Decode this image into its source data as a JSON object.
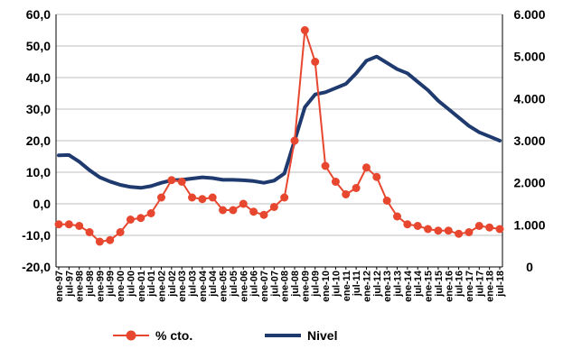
{
  "chart_data": {
    "type": "line",
    "x_tick_labels": [
      "ene-97",
      "jul-97",
      "ene-98",
      "jul-98",
      "ene-99",
      "jul-99",
      "ene-00",
      "jul-00",
      "ene-01",
      "jul-01",
      "ene-02",
      "jul-02",
      "ene-03",
      "jul-03",
      "ene-04",
      "jul-04",
      "ene-05",
      "jul-05",
      "ene-06",
      "jul-06",
      "ene-07",
      "jul-07",
      "ene-08",
      "jul-08",
      "ene-09",
      "jul-09",
      "ene-10",
      "jul-10",
      "ene-11",
      "jul-11",
      "ene-12",
      "jul-12",
      "ene-13",
      "jul-13",
      "ene-14",
      "jul-14",
      "ene-15",
      "jul-15",
      "ene-16",
      "jul-16",
      "ene-17",
      "jul-17",
      "ene-18",
      "jul-18"
    ],
    "y_left": {
      "ylim": [
        -20,
        60
      ],
      "ticks": [
        "-20,0",
        "-10,0",
        "0,0",
        "10,0",
        "20,0",
        "30,0",
        "40,0",
        "50,0",
        "60,0"
      ]
    },
    "y_right": {
      "ylim": [
        0,
        6000
      ],
      "ticks": [
        "0",
        "1.000",
        "2.000",
        "3.000",
        "4.000",
        "5.000",
        "6.000"
      ]
    },
    "grid": "horizontal",
    "legend_placement": "bottom",
    "series": [
      {
        "name": "% cto.",
        "axis": "left",
        "color": "#e8472f",
        "marker": "circle",
        "x": [
          "ene-97",
          "jul-97",
          "ene-98",
          "jul-98",
          "ene-99",
          "jul-99",
          "ene-00",
          "jul-00",
          "ene-01",
          "jul-01",
          "ene-02",
          "jul-02",
          "ene-03",
          "jul-03",
          "ene-04",
          "jul-04",
          "ene-05",
          "jul-05",
          "ene-06",
          "jul-06",
          "ene-07",
          "jul-07",
          "ene-08",
          "jul-08",
          "ene-09",
          "jul-09",
          "ene-10",
          "jul-10",
          "ene-11",
          "jul-11",
          "ene-12",
          "jul-12",
          "ene-13",
          "jul-13",
          "ene-14",
          "jul-14",
          "ene-15",
          "jul-15",
          "ene-16",
          "jul-16",
          "ene-17",
          "jul-17",
          "ene-18",
          "jul-18"
        ],
        "values": [
          -6.5,
          -6.5,
          -7.0,
          -9.0,
          -12.0,
          -11.5,
          -9.0,
          -5.0,
          -4.5,
          -3.0,
          2.0,
          7.5,
          7.0,
          2.0,
          1.5,
          2.0,
          -2.0,
          -2.0,
          0.0,
          -2.5,
          -3.5,
          -1.0,
          2.0,
          20.0,
          55.0,
          45.0,
          12.0,
          7.0,
          3.0,
          5.0,
          11.5,
          8.5,
          1.0,
          -4.0,
          -6.5,
          -7.0,
          -8.0,
          -8.5,
          -8.5,
          -9.5,
          -9.0,
          -7.0,
          -7.5,
          -8.0
        ]
      },
      {
        "name": "Nivel",
        "axis": "right",
        "color": "#1f3a6e",
        "marker": "none",
        "x": [
          "ene-97",
          "jul-97",
          "ene-98",
          "jul-98",
          "ene-99",
          "jul-99",
          "ene-00",
          "jul-00",
          "ene-01",
          "jul-01",
          "ene-02",
          "jul-02",
          "ene-03",
          "jul-03",
          "ene-04",
          "jul-04",
          "ene-05",
          "jul-05",
          "ene-06",
          "jul-06",
          "ene-07",
          "jul-07",
          "ene-08",
          "jul-08",
          "ene-09",
          "jul-09",
          "ene-10",
          "jul-10",
          "ene-11",
          "jul-11",
          "ene-12",
          "jul-12",
          "ene-13",
          "jul-13",
          "ene-14",
          "jul-14",
          "ene-15",
          "jul-15",
          "ene-16",
          "jul-16",
          "ene-17",
          "jul-17",
          "ene-18",
          "jul-18"
        ],
        "values": [
          2650,
          2660,
          2500,
          2300,
          2130,
          2030,
          1950,
          1900,
          1880,
          1920,
          2000,
          2060,
          2070,
          2100,
          2130,
          2110,
          2070,
          2070,
          2060,
          2040,
          2000,
          2050,
          2220,
          3000,
          3800,
          4100,
          4150,
          4250,
          4350,
          4600,
          4900,
          5000,
          4850,
          4700,
          4600,
          4400,
          4200,
          3950,
          3750,
          3550,
          3350,
          3200,
          3100,
          3000
        ]
      }
    ]
  }
}
